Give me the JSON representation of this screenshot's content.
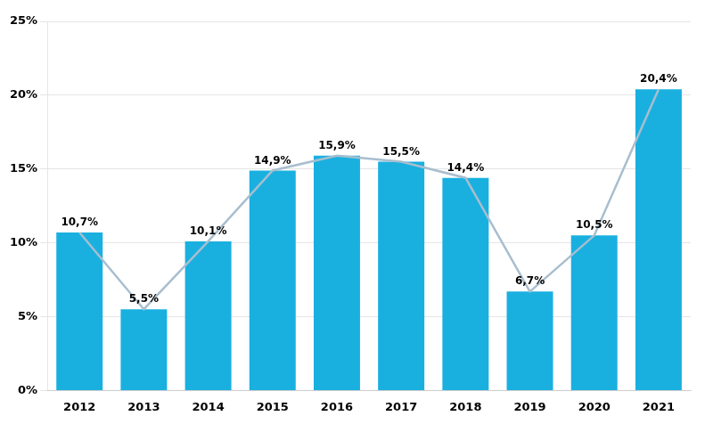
{
  "chart_data": {
    "type": "bar",
    "categories": [
      "2012",
      "2013",
      "2014",
      "2015",
      "2016",
      "2017",
      "2018",
      "2019",
      "2020",
      "2021"
    ],
    "series": [
      {
        "type": "bar",
        "color": "#19b0e0",
        "values": [
          10.7,
          5.5,
          10.1,
          14.9,
          15.9,
          15.5,
          14.4,
          6.7,
          10.5,
          20.4
        ],
        "value_labels": [
          "10,7%",
          "5,5%",
          "10,1%",
          "14,9%",
          "15,9%",
          "15,5%",
          "14,4%",
          "6,7%",
          "10,5%",
          "20,4%"
        ]
      },
      {
        "type": "line",
        "color": "#a8bece",
        "values": [
          10.7,
          5.5,
          10.1,
          14.9,
          15.9,
          15.5,
          14.4,
          6.7,
          10.5,
          20.4
        ]
      }
    ],
    "ylim": [
      0,
      25
    ],
    "yticks": [
      {
        "value": 0,
        "label": "0%"
      },
      {
        "value": 5,
        "label": "5%"
      },
      {
        "value": 10,
        "label": "10%"
      },
      {
        "value": 15,
        "label": "15%"
      },
      {
        "value": 20,
        "label": "20%"
      },
      {
        "value": 25,
        "label": "25%"
      }
    ],
    "grid": true,
    "data_labels": true
  }
}
